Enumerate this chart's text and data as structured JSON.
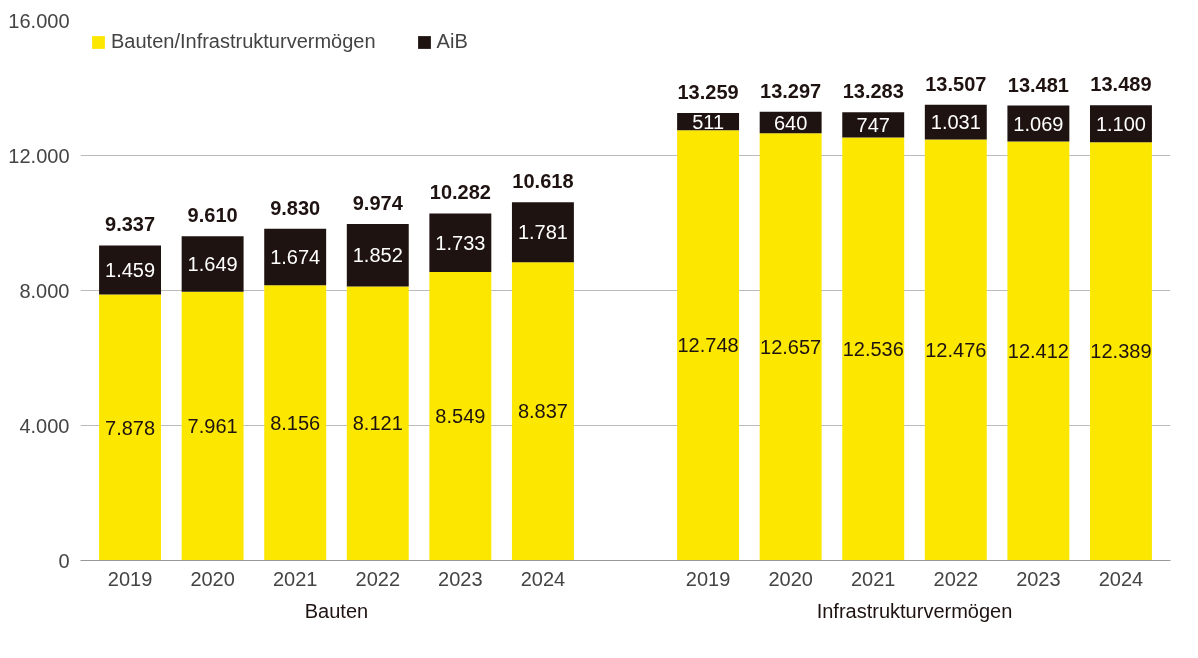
{
  "chart_data": {
    "type": "bar",
    "stacked": true,
    "categories": [
      "2019",
      "2020",
      "2021",
      "2022",
      "2023",
      "2024",
      null,
      "2019",
      "2020",
      "2021",
      "2022",
      "2023",
      "2024"
    ],
    "series": [
      {
        "name": "Bauten/Infrastrukturvermögen",
        "color": "#fbe700",
        "values": [
          7878,
          7961,
          8156,
          8121,
          8549,
          8837,
          null,
          12748,
          12657,
          12536,
          12476,
          12412,
          12389
        ],
        "value_labels": [
          "7.878",
          "7.961",
          "8.156",
          "8.121",
          "8.549",
          "8.837",
          null,
          "12.748",
          "12.657",
          "12.536",
          "12.476",
          "12.412",
          "12.389"
        ]
      },
      {
        "name": "AiB",
        "color": "#1e1310",
        "values": [
          1459,
          1649,
          1674,
          1852,
          1733,
          1781,
          null,
          511,
          640,
          747,
          1031,
          1069,
          1100
        ],
        "value_labels": [
          "1.459",
          "1.649",
          "1.674",
          "1.852",
          "1.733",
          "1.781",
          null,
          "511",
          "640",
          "747",
          "1.031",
          "1.069",
          "1.100"
        ]
      }
    ],
    "totals": [
      "9.337",
      "9.610",
      "9.830",
      "9.974",
      "10.282",
      "10.618",
      null,
      "13.259",
      "13.297",
      "13.283",
      "13.507",
      "13.481",
      "13.489"
    ],
    "ylim": [
      0,
      16000
    ],
    "yticks": [
      0,
      {
        "value": 4000,
        "label": "4.000"
      },
      {
        "value": 8000,
        "label": "8.000"
      },
      {
        "value": 12000,
        "label": "12.000"
      },
      {
        "value": 16000,
        "label": "16.000"
      }
    ],
    "annotations": [
      "Bauten",
      "Infrastrukturvermögen"
    ],
    "grid": "y",
    "legend": "top left"
  }
}
